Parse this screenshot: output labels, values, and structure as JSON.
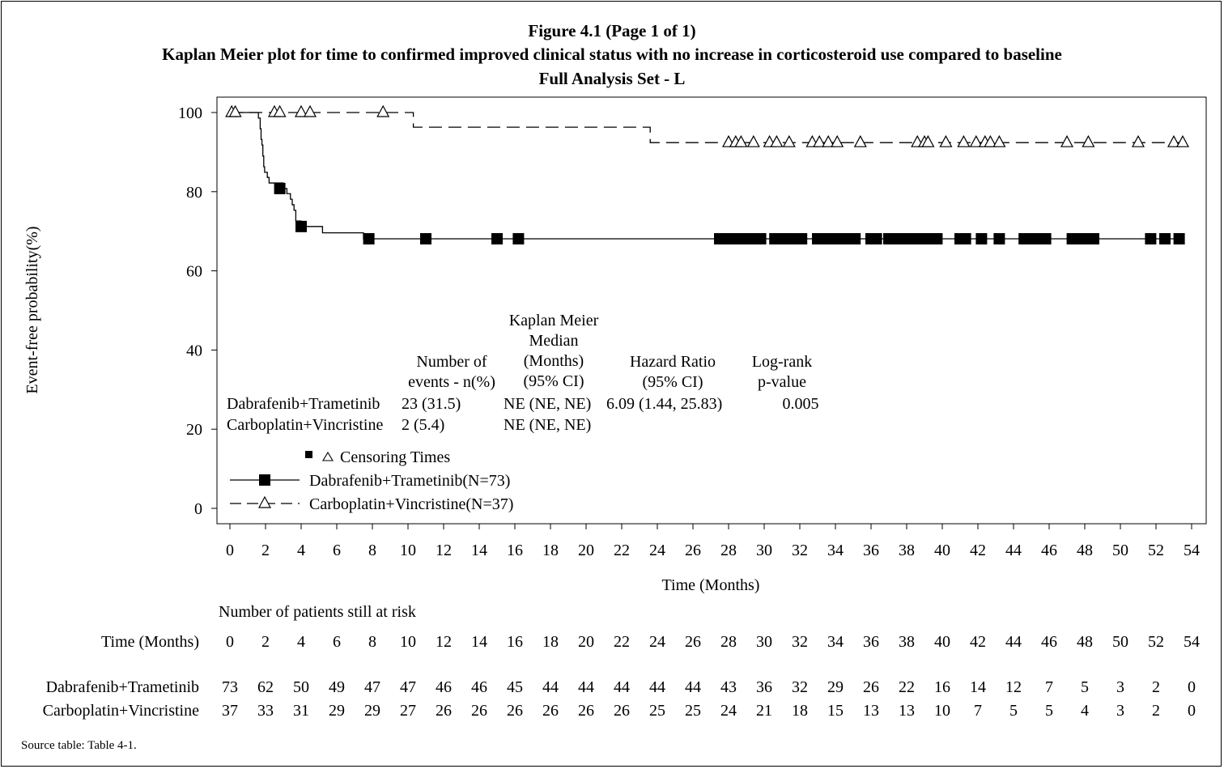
{
  "titles": [
    "Figure 4.1 (Page 1 of 1)",
    "Kaplan Meier plot for time to confirmed improved clinical status with no increase in corticosteroid use compared to baseline",
    "Full Analysis Set - L"
  ],
  "chart_data": {
    "type": "line",
    "subtype": "kaplan-meier",
    "xlabel": "Time (Months)",
    "ylabel": "Event-free probability(%)",
    "xlim": [
      0,
      54
    ],
    "ylim": [
      0,
      100
    ],
    "xticks": [
      0,
      2,
      4,
      6,
      8,
      10,
      12,
      14,
      16,
      18,
      20,
      22,
      24,
      26,
      28,
      30,
      32,
      34,
      36,
      38,
      40,
      42,
      44,
      46,
      48,
      50,
      52,
      54
    ],
    "yticks": [
      0,
      20,
      40,
      60,
      80,
      100
    ],
    "grid": false,
    "series": [
      {
        "name": "Dabrafenib+Trametinib(N=73)",
        "linestyle": "solid",
        "marker": "square",
        "color": "#000000",
        "steps": [
          [
            0,
            100
          ],
          [
            1.6,
            98.6
          ],
          [
            1.7,
            95.9
          ],
          [
            1.75,
            93.2
          ],
          [
            1.8,
            91.8
          ],
          [
            1.85,
            89.0
          ],
          [
            1.9,
            86.3
          ],
          [
            1.95,
            84.9
          ],
          [
            2.1,
            83.6
          ],
          [
            2.2,
            82.2
          ],
          [
            3.0,
            80.8
          ],
          [
            3.2,
            79.5
          ],
          [
            3.4,
            78.1
          ],
          [
            3.5,
            76.7
          ],
          [
            3.6,
            75.3
          ],
          [
            3.7,
            72.6
          ],
          [
            4.0,
            71.2
          ],
          [
            5.2,
            69.6
          ],
          [
            7.5,
            68.1
          ]
        ],
        "censor_times": [
          2.8,
          4.0,
          7.8,
          11.0,
          15.0,
          16.2,
          27.5,
          27.8,
          28.0,
          28.3,
          28.6,
          28.9,
          29.2,
          29.5,
          29.8,
          30.6,
          30.9,
          31.2,
          31.5,
          32.1,
          33.0,
          33.3,
          33.6,
          33.9,
          34.2,
          34.5,
          34.8,
          35.1,
          36.0,
          36.3,
          37.0,
          37.3,
          37.6,
          37.9,
          38.2,
          38.5,
          38.8,
          39.1,
          39.4,
          39.7,
          41.0,
          41.3,
          42.2,
          43.2,
          44.6,
          44.9,
          45.2,
          45.5,
          45.8,
          47.3,
          47.6,
          47.9,
          48.2,
          48.5,
          51.7,
          52.5,
          53.3
        ],
        "censor_y": [
          80.8,
          71.2,
          68.1,
          68.1,
          68.1,
          68.1,
          68.1,
          68.1,
          68.1,
          68.1,
          68.1,
          68.1,
          68.1,
          68.1,
          68.1,
          68.1,
          68.1,
          68.1,
          68.1,
          68.1,
          68.1,
          68.1,
          68.1,
          68.1,
          68.1,
          68.1,
          68.1,
          68.1,
          68.1,
          68.1,
          68.1,
          68.1,
          68.1,
          68.1,
          68.1,
          68.1,
          68.1,
          68.1,
          68.1,
          68.1,
          68.1,
          68.1,
          68.1,
          68.1,
          68.1,
          68.1,
          68.1,
          68.1,
          68.1,
          68.1,
          68.1,
          68.1,
          68.1,
          68.1,
          68.1,
          68.1,
          68.1
        ]
      },
      {
        "name": "Carboplatin+Vincristine(N=37)",
        "linestyle": "dashed",
        "marker": "triangle-open",
        "color": "#000000",
        "steps": [
          [
            0,
            100
          ],
          [
            10.3,
            96.3
          ],
          [
            23.6,
            92.4
          ]
        ],
        "censor_times": [
          0.1,
          0.3,
          2.5,
          2.8,
          4.0,
          4.5,
          8.6,
          28.0,
          28.4,
          28.7,
          29.4,
          30.3,
          30.7,
          31.4,
          32.7,
          33.1,
          33.6,
          34.1,
          35.4,
          38.6,
          39.0,
          39.2,
          40.2,
          41.2,
          41.9,
          42.4,
          42.7,
          43.2,
          47.0,
          48.2,
          51.0,
          53.0,
          53.5
        ],
        "censor_y": [
          100,
          100,
          100,
          100,
          100,
          100,
          100,
          92.4,
          92.4,
          92.4,
          92.4,
          92.4,
          92.4,
          92.4,
          92.4,
          92.4,
          92.4,
          92.4,
          92.4,
          92.4,
          92.4,
          92.4,
          92.4,
          92.4,
          92.4,
          92.4,
          92.4,
          92.4,
          92.4,
          92.4,
          92.4,
          92.4,
          92.4
        ]
      }
    ],
    "legend": {
      "position": "bottom-left",
      "censor_label": "Censoring Times",
      "entries": [
        "Dabrafenib+Trametinib(N=73)",
        "Carboplatin+Vincristine(N=37)"
      ]
    },
    "stats_table": {
      "headers": {
        "events": [
          "Number of",
          "events - n(%)"
        ],
        "median": [
          "Kaplan Meier",
          "Median",
          "(Months)",
          "(95% CI)"
        ],
        "hr": [
          "Hazard Ratio",
          "(95% CI)"
        ],
        "logrank": [
          "Log-rank",
          "p-value"
        ]
      },
      "rows": [
        {
          "arm": "Dabrafenib+Trametinib",
          "events": "23 (31.5)",
          "median": "NE (NE, NE)",
          "hr": "6.09 (1.44, 25.83)",
          "pvalue": "0.005"
        },
        {
          "arm": "Carboplatin+Vincristine",
          "events": "2 (5.4)",
          "median": "NE (NE, NE)",
          "hr": "",
          "pvalue": ""
        }
      ]
    },
    "risk_table": {
      "title": "Number of patients still at risk",
      "time_label": "Time (Months)",
      "times": [
        0,
        2,
        4,
        6,
        8,
        10,
        12,
        14,
        16,
        18,
        20,
        22,
        24,
        26,
        28,
        30,
        32,
        34,
        36,
        38,
        40,
        42,
        44,
        46,
        48,
        50,
        52,
        54
      ],
      "rows": [
        {
          "arm": "Dabrafenib+Trametinib",
          "values": [
            73,
            62,
            50,
            49,
            47,
            47,
            46,
            46,
            45,
            44,
            44,
            44,
            44,
            44,
            43,
            36,
            32,
            29,
            26,
            22,
            16,
            14,
            12,
            7,
            5,
            3,
            2,
            0
          ]
        },
        {
          "arm": "Carboplatin+Vincristine",
          "values": [
            37,
            33,
            31,
            29,
            29,
            27,
            26,
            26,
            26,
            26,
            26,
            26,
            25,
            25,
            24,
            21,
            18,
            15,
            13,
            13,
            10,
            7,
            5,
            5,
            4,
            3,
            2,
            0
          ]
        }
      ]
    }
  },
  "footnote": "Source table: Table 4-1."
}
